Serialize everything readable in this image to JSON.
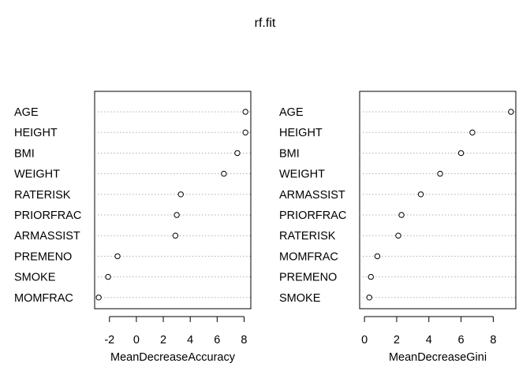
{
  "title": "rf.fit",
  "chart_data": [
    {
      "type": "scatter",
      "xlabel": "MeanDecreaseAccuracy",
      "xlim": [
        -3.1,
        8.5
      ],
      "ticks": [
        -2,
        0,
        2,
        4,
        6,
        8
      ],
      "tick_labels": [
        "-2",
        "0",
        "2",
        "4",
        "6",
        "8"
      ],
      "grid": "dotted horizontal",
      "categories": [
        "AGE",
        "HEIGHT",
        "BMI",
        "WEIGHT",
        "RATERISK",
        "PRIORFRAC",
        "ARMASSIST",
        "PREMENO",
        "SMOKE",
        "MOMFRAC"
      ],
      "values": [
        8.1,
        8.1,
        7.5,
        6.5,
        3.3,
        3.0,
        2.9,
        -1.4,
        -2.1,
        -2.8
      ]
    },
    {
      "type": "scatter",
      "xlabel": "MeanDecreaseGini",
      "xlim": [
        -0.3,
        9.4
      ],
      "ticks": [
        0,
        2,
        4,
        6,
        8
      ],
      "tick_labels": [
        "0",
        "2",
        "4",
        "6",
        "8"
      ],
      "grid": "dotted horizontal",
      "categories": [
        "AGE",
        "HEIGHT",
        "BMI",
        "WEIGHT",
        "ARMASSIST",
        "PRIORFRAC",
        "RATERISK",
        "MOMFRAC",
        "PREMENO",
        "SMOKE"
      ],
      "values": [
        9.1,
        6.7,
        6.0,
        4.7,
        3.5,
        2.3,
        2.1,
        0.8,
        0.4,
        0.3
      ]
    }
  ]
}
